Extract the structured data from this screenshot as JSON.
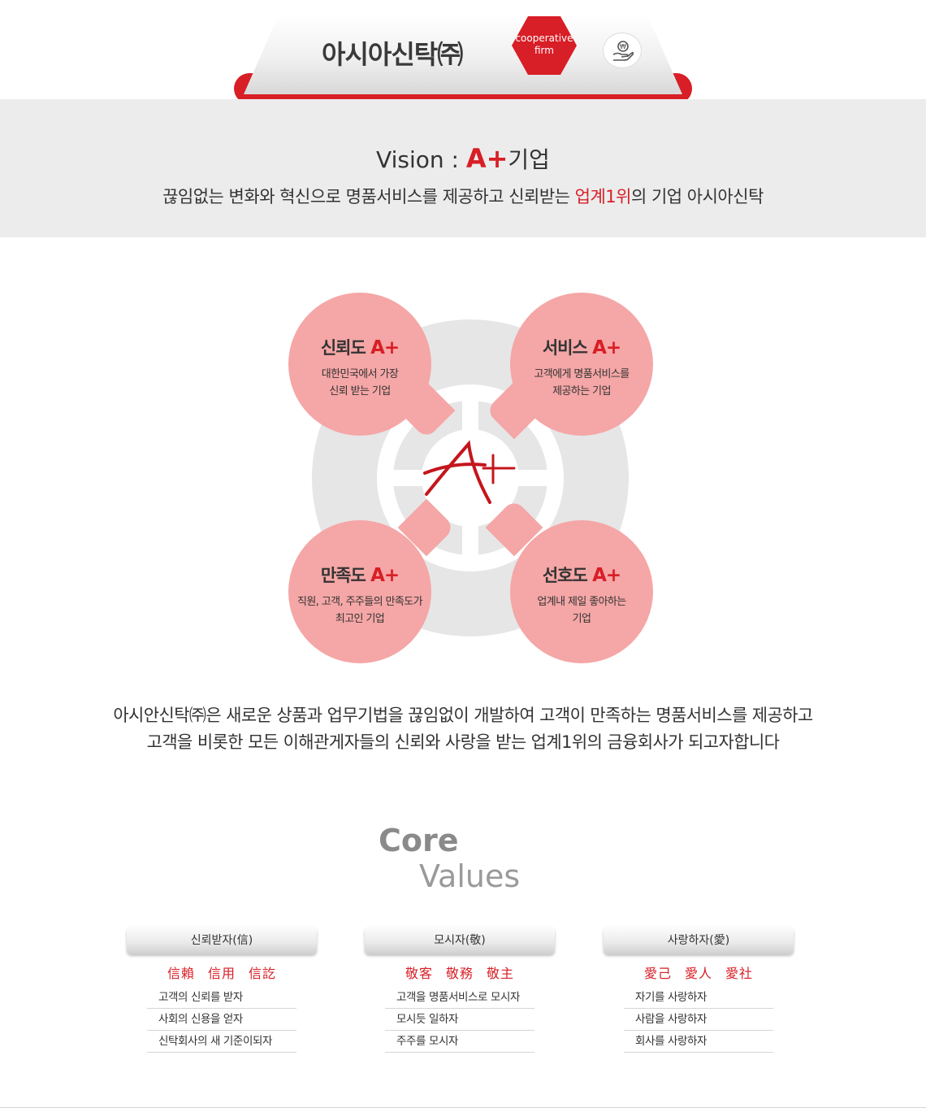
{
  "header": {
    "title": "아시아신탁㈜",
    "badge": "cooperative firm",
    "badge_line1": "cooperative",
    "badge_line2": "firm",
    "icon": "coin-hand-icon"
  },
  "vision": {
    "prefix": "Vision : ",
    "aplus": "A+",
    "suffix": "기업",
    "sub_before": "끊임없는 변화와 혁신으로 명품서비스를 제공하고 신뢰받는 ",
    "sub_highlight": "업계1위",
    "sub_after": "의 기업 아시아신탁"
  },
  "diagram": {
    "center_logo": "A+",
    "items": [
      {
        "title": "신뢰도 ",
        "aplus": "A+",
        "line1": "대한민국에서 가장",
        "line2": "신뢰 받는 기업"
      },
      {
        "title": "서비스 ",
        "aplus": "A+",
        "line1": "고객에게 명품서비스를",
        "line2": "제공하는 기업"
      },
      {
        "title": "만족도 ",
        "aplus": "A+",
        "line1": "직원, 고객, 주주들의 만족도가",
        "line2": "최고인 기업"
      },
      {
        "title": "선호도 ",
        "aplus": "A+",
        "line1": "업계내 제일 좋아하는",
        "line2": "기업"
      }
    ]
  },
  "description": {
    "line1": "아시안신탁㈜은 새로운 상품과 업무기법을 끊임없이 개발하여 고객이 만족하는 명품서비스를 제공하고",
    "line2": "고객을 비롯한 모든 이해관게자들의 신뢰와 사랑을 받는 업계1위의 금융회사가 되고자합니다"
  },
  "core_values": {
    "title_core": "Core",
    "title_values": "Values",
    "columns": [
      {
        "head": "신뢰받자(信)",
        "hanja": [
          "信賴",
          "信用",
          "信訖"
        ],
        "items": [
          "고객의 신뢰를 받자",
          "사회의 신용을 얻자",
          "신탁회사의 새 기준이되자"
        ]
      },
      {
        "head": "모시자(敬)",
        "hanja": [
          "敬客",
          "敬務",
          "敬主"
        ],
        "items": [
          "고객을 명품서비스로 모시자",
          "모시듯 일하자",
          "주주를 모시자"
        ]
      },
      {
        "head": "사랑하자(愛)",
        "hanja": [
          "愛己",
          "愛人",
          "愛社"
        ],
        "items": [
          "자기를 사랑하자",
          "사람을 사랑하자",
          "회사를 사랑하자"
        ]
      }
    ]
  },
  "colors": {
    "accent": "#d81e26",
    "bubble": "#f5a6a6",
    "ring": "#e6e6e6",
    "band": "#ececec"
  }
}
